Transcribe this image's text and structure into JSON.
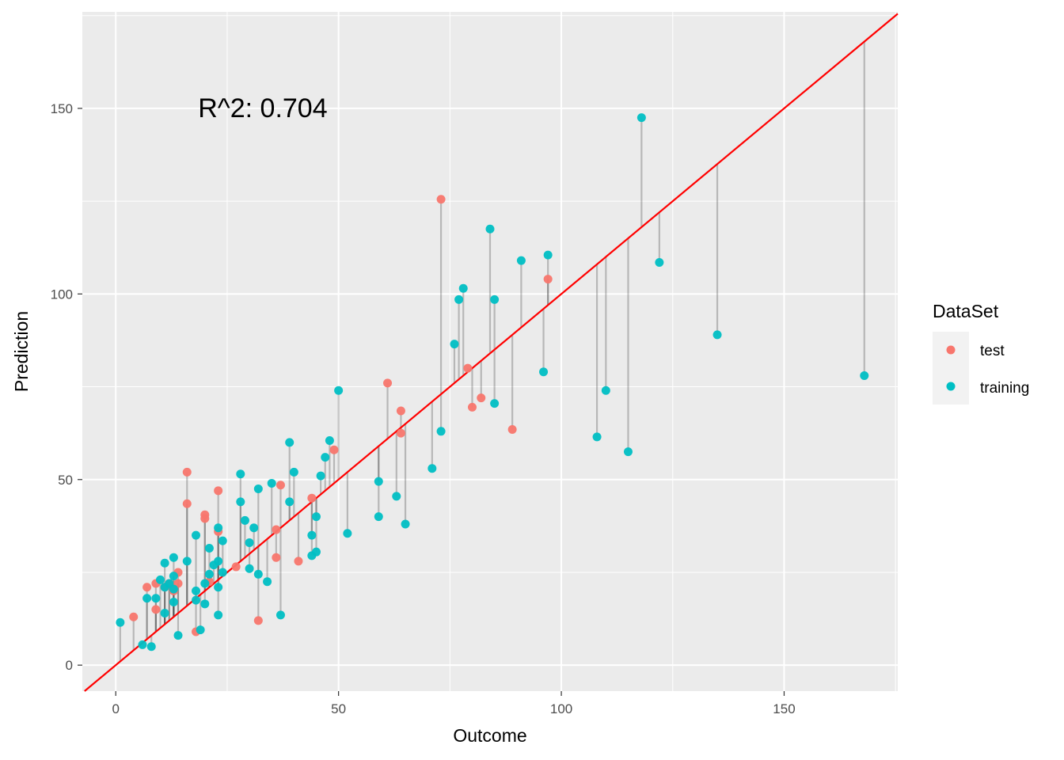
{
  "chart_data": {
    "type": "scatter",
    "title": "",
    "xlabel": "Outcome",
    "ylabel": "Prediction",
    "xlim": [
      -7.5,
      175.5
    ],
    "ylim": [
      -7,
      176
    ],
    "xticks": [
      0,
      50,
      100,
      150
    ],
    "yticks": [
      0,
      50,
      100,
      150
    ],
    "tick_labels_x": [
      "0",
      "50",
      "100",
      "150"
    ],
    "tick_labels_y": [
      "0",
      "50",
      "100",
      "150"
    ],
    "annotation": {
      "text": "R^2: 0.704",
      "x": 33,
      "y": 150
    },
    "reference_line": {
      "type": "identity",
      "slope": 1,
      "intercept": 0,
      "color": "#ff0000"
    },
    "residual_lines": true,
    "legend": {
      "title": "DataSet",
      "position": "right"
    },
    "series": [
      {
        "name": "test",
        "color": "#f8766d",
        "points": [
          [
            4,
            13
          ],
          [
            7,
            21
          ],
          [
            9,
            22
          ],
          [
            9,
            15
          ],
          [
            11,
            21
          ],
          [
            12,
            22
          ],
          [
            13,
            20
          ],
          [
            14,
            22
          ],
          [
            14,
            25
          ],
          [
            16,
            52
          ],
          [
            16,
            43.5
          ],
          [
            18,
            9
          ],
          [
            20,
            40.5
          ],
          [
            20,
            39.5
          ],
          [
            21,
            22.5
          ],
          [
            23,
            47
          ],
          [
            23,
            36
          ],
          [
            27,
            26.5
          ],
          [
            32,
            12
          ],
          [
            36,
            36.5
          ],
          [
            36,
            29
          ],
          [
            37,
            48.5
          ],
          [
            41,
            28
          ],
          [
            44,
            45
          ],
          [
            49,
            58
          ],
          [
            61,
            76
          ],
          [
            64,
            68.5
          ],
          [
            64,
            62.5
          ],
          [
            73,
            125.5
          ],
          [
            79,
            80
          ],
          [
            80,
            69.5
          ],
          [
            82,
            72
          ],
          [
            89,
            63.5
          ],
          [
            97,
            104
          ]
        ]
      },
      {
        "name": "training",
        "color": "#00bfc4",
        "points": [
          [
            1,
            11.5
          ],
          [
            6,
            5.5
          ],
          [
            7,
            18
          ],
          [
            8,
            5
          ],
          [
            9,
            18
          ],
          [
            10,
            23
          ],
          [
            11,
            27.5
          ],
          [
            11,
            21
          ],
          [
            11,
            14
          ],
          [
            12,
            22
          ],
          [
            13,
            29
          ],
          [
            13,
            24
          ],
          [
            13,
            20.5
          ],
          [
            13,
            17
          ],
          [
            14,
            8
          ],
          [
            16,
            28
          ],
          [
            18,
            35
          ],
          [
            18,
            20
          ],
          [
            18,
            17.5
          ],
          [
            19,
            9.5
          ],
          [
            20,
            22
          ],
          [
            20,
            16.5
          ],
          [
            21,
            31.5
          ],
          [
            21,
            24.5
          ],
          [
            22,
            27
          ],
          [
            23,
            37
          ],
          [
            23,
            28
          ],
          [
            23,
            21
          ],
          [
            23,
            13.5
          ],
          [
            24,
            33.5
          ],
          [
            24,
            25
          ],
          [
            28,
            51.5
          ],
          [
            28,
            44
          ],
          [
            29,
            39
          ],
          [
            30,
            33
          ],
          [
            30,
            26
          ],
          [
            31,
            37
          ],
          [
            32,
            47.5
          ],
          [
            32,
            24.5
          ],
          [
            34,
            22.5
          ],
          [
            35,
            49
          ],
          [
            37,
            13.5
          ],
          [
            39,
            60
          ],
          [
            39,
            44
          ],
          [
            40,
            52
          ],
          [
            44,
            35
          ],
          [
            44,
            29.5
          ],
          [
            45,
            40
          ],
          [
            45,
            30.5
          ],
          [
            46,
            51
          ],
          [
            47,
            56
          ],
          [
            48,
            60.5
          ],
          [
            50,
            74
          ],
          [
            52,
            35.5
          ],
          [
            59,
            49.5
          ],
          [
            59,
            40
          ],
          [
            63,
            45.5
          ],
          [
            65,
            38
          ],
          [
            71,
            53
          ],
          [
            73,
            63
          ],
          [
            76,
            86.5
          ],
          [
            77,
            98.5
          ],
          [
            78,
            101.5
          ],
          [
            84,
            117.5
          ],
          [
            85,
            98.5
          ],
          [
            85,
            70.5
          ],
          [
            91,
            109
          ],
          [
            96,
            79
          ],
          [
            97,
            110.5
          ],
          [
            108,
            61.5
          ],
          [
            110,
            74
          ],
          [
            115,
            57.5
          ],
          [
            118,
            147.5
          ],
          [
            122,
            108.5
          ],
          [
            135,
            89
          ],
          [
            168,
            78
          ]
        ]
      }
    ]
  }
}
